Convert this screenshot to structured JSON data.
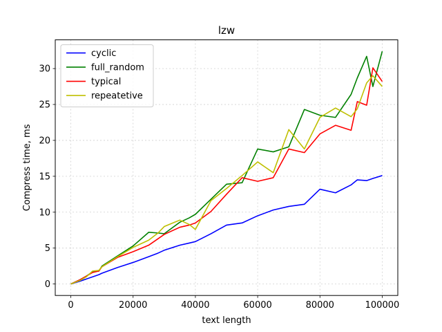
{
  "chart_data": {
    "type": "line",
    "title": "lzw",
    "xlabel": "text length",
    "ylabel": "Compress time, ms",
    "xlim": [
      -5000,
      105000
    ],
    "ylim": [
      -1.6,
      34.0
    ],
    "xticks": [
      0,
      20000,
      40000,
      60000,
      80000,
      100000
    ],
    "yticks": [
      0,
      5,
      10,
      15,
      20,
      25,
      30
    ],
    "grid": true,
    "legend_position": "top-left",
    "x": [
      0,
      3000,
      5000,
      7000,
      9000,
      10000,
      15000,
      20000,
      25000,
      28000,
      30000,
      35000,
      38000,
      40000,
      45000,
      50000,
      55000,
      60000,
      65000,
      70000,
      75000,
      80000,
      85000,
      90000,
      92000,
      95000,
      97000,
      100000
    ],
    "series": [
      {
        "name": "cyclic",
        "color": "#0000ff",
        "values": [
          0,
          0.4,
          0.7,
          1.0,
          1.3,
          1.5,
          2.3,
          3.0,
          3.8,
          4.3,
          4.7,
          5.4,
          5.7,
          5.9,
          7.0,
          8.2,
          8.5,
          9.5,
          10.3,
          10.8,
          11.1,
          13.2,
          12.7,
          13.8,
          14.5,
          14.4,
          14.7,
          15.1
        ]
      },
      {
        "name": "full_random",
        "color": "#008000",
        "values": [
          0,
          0.6,
          1.1,
          1.7,
          1.8,
          2.5,
          3.9,
          5.3,
          7.2,
          7.1,
          7.0,
          8.6,
          9.2,
          9.7,
          11.8,
          13.9,
          14.1,
          18.8,
          18.4,
          19.1,
          24.3,
          23.5,
          23.2,
          26.4,
          28.7,
          31.7,
          27.5,
          32.4
        ]
      },
      {
        "name": "typical",
        "color": "#ff0000",
        "values": [
          0,
          0.6,
          1.1,
          1.6,
          1.8,
          2.4,
          3.7,
          4.5,
          5.4,
          6.3,
          6.9,
          7.9,
          8.2,
          8.5,
          10.1,
          12.5,
          14.8,
          14.3,
          14.8,
          18.8,
          18.3,
          20.9,
          22.1,
          21.4,
          25.4,
          24.9,
          30.1,
          28.2
        ]
      },
      {
        "name": "repeatetive",
        "color": "#bfbf00",
        "values": [
          0,
          0.5,
          1.0,
          1.8,
          1.9,
          2.4,
          3.8,
          5.1,
          6.1,
          7.1,
          8.0,
          8.9,
          8.3,
          7.6,
          11.6,
          13.3,
          15.1,
          17.0,
          15.5,
          21.5,
          18.8,
          23.2,
          24.5,
          23.3,
          24.4,
          28.0,
          29.0,
          27.5
        ]
      }
    ]
  }
}
